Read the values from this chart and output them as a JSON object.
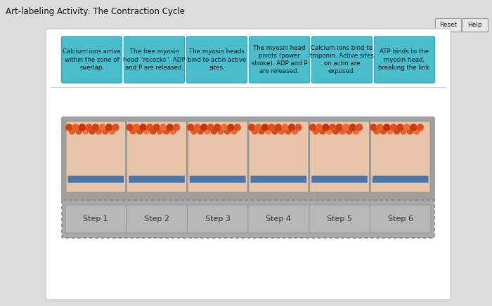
{
  "title": "Art-labeling Activity: The Contraction Cycle",
  "title_fontsize": 8.5,
  "outer_bg": "#dcdcdc",
  "main_box_bg": "#f0f0f0",
  "main_box_border": "#cccccc",
  "card_color": "#4bbece",
  "card_border": "#38a8b8",
  "card_fontsize": 6.2,
  "reset_label": "Reset",
  "help_label": "Help",
  "btn_bg": "#e8e8e8",
  "btn_border": "#999999",
  "cards": [
    "Calcium ions arrive\nwithin the zone of\noverlap.",
    "The free myosin\nhead \"recocks\". ADP\nand P are released.",
    "The myosin heads\nbind to actin active\nsites.",
    "The myosin head\npivots (power\nstroke). ADP and P\nare released.",
    "Calcium ions bind to\ntroponin. Active sites\non actin are\nexposed.",
    "ATP binds to the\nmyosin head,\nbreaking the link."
  ],
  "step_labels": [
    "Step 1",
    "Step 2",
    "Step 3",
    "Step 4",
    "Step 5",
    "Step 6"
  ],
  "step_box_color": "#b8b8b8",
  "step_box_border": "#999999",
  "step_font_size": 8,
  "img_panel_bg": "#a0a0a0",
  "img_cell_bg": "#e8c4a8",
  "img_cell_border": "#888888",
  "dashed_area_bg": "#aaaaaa",
  "img_panel_border": "#888888"
}
